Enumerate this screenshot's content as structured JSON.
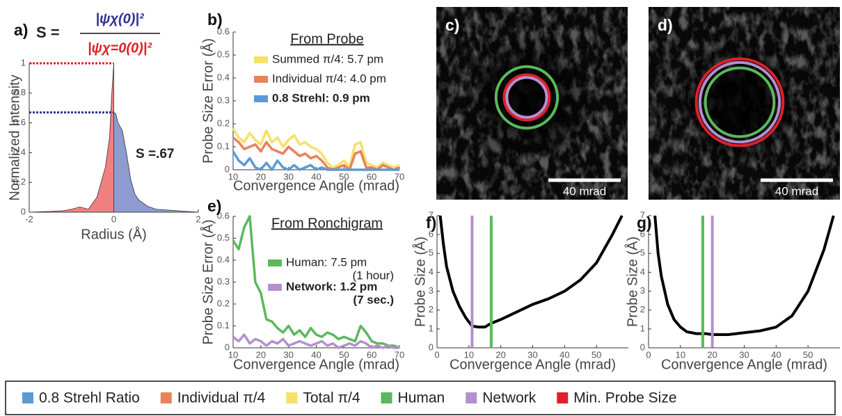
{
  "chart_data": [
    {
      "type": "area",
      "panel_label": "a)",
      "formula": {
        "lhs": "S =",
        "numerator": "|ψχ(0)|²",
        "denominator": "|ψχ=0(0)|²"
      },
      "annotation": "S =.67",
      "x_label": "Radius (Å)",
      "y_label": "Normalized Intensity",
      "xlim": [
        -2,
        2
      ],
      "xticks": [
        -2,
        0,
        2
      ],
      "ylim": [
        0,
        1
      ],
      "yticks": [
        0,
        0.2,
        0.4,
        0.6,
        0.8,
        1
      ],
      "hlines": [
        {
          "value": 1,
          "color": "#e0202a"
        },
        {
          "value": 0.67,
          "color": "#2e3192"
        }
      ],
      "series": [
        {
          "color": "#f08080",
          "x": [
            -2,
            -1.5,
            -1.2,
            -1,
            -0.8,
            -0.6,
            -0.4,
            -0.3,
            -0.2,
            -0.1,
            -0.05,
            0
          ],
          "values": [
            0,
            0.005,
            0.01,
            0.02,
            0.035,
            0.02,
            0.1,
            0.2,
            0.3,
            0.5,
            0.78,
            1
          ]
        },
        {
          "color": "#8d9bd0",
          "x": [
            0,
            0.05,
            0.1,
            0.2,
            0.3,
            0.4,
            0.5,
            0.6,
            0.8,
            1,
            1.5,
            2
          ],
          "values": [
            0.67,
            0.66,
            0.6,
            0.55,
            0.4,
            0.22,
            0.12,
            0.08,
            0.04,
            0.02,
            0.01,
            0
          ]
        }
      ]
    },
    {
      "type": "line",
      "panel_label": "b)",
      "title": "From Probe",
      "x_label": "Convergence Angle (mrad)",
      "y_label": "Probe Size Error (Å)",
      "xlim": [
        10,
        70
      ],
      "xticks": [
        10,
        20,
        30,
        40,
        50,
        60,
        70
      ],
      "ylim": [
        0,
        0.6
      ],
      "yticks": [
        0,
        0.1,
        0.2,
        0.3,
        0.4,
        0.5,
        0.6
      ],
      "x": [
        10,
        12,
        14,
        16,
        18,
        20,
        22,
        24,
        26,
        28,
        30,
        32,
        34,
        36,
        38,
        40,
        42,
        44,
        46,
        48,
        50,
        52,
        54,
        56,
        58,
        60,
        62,
        64,
        66,
        68,
        70
      ],
      "series": [
        {
          "name": "Summed π/4: 5.7 pm",
          "color": "#f7e06a",
          "bold": false,
          "values": [
            0.18,
            0.14,
            0.12,
            0.16,
            0.13,
            0.11,
            0.17,
            0.12,
            0.14,
            0.1,
            0.13,
            0.15,
            0.11,
            0.12,
            0.1,
            0.09,
            0.07,
            0.03,
            0.01,
            0.02,
            0.04,
            0.01,
            0.11,
            0.12,
            0.03,
            0.02,
            0.01,
            0.03,
            0.02,
            0.01,
            0.02
          ]
        },
        {
          "name": "Individual π/4: 4.0 pm",
          "color": "#e8825a",
          "bold": false,
          "values": [
            0.14,
            0.12,
            0.09,
            0.1,
            0.11,
            0.08,
            0.12,
            0.09,
            0.08,
            0.07,
            0.1,
            0.08,
            0.06,
            0.07,
            0.05,
            0.06,
            0.04,
            0.01,
            0,
            0.01,
            0.02,
            0,
            0.07,
            0.08,
            0.01,
            0.01,
            0,
            0.02,
            0.01,
            0,
            0.01
          ]
        },
        {
          "name": "0.8 Strehl: 0.9 pm",
          "color": "#5b9bd5",
          "bold": true,
          "values": [
            0.08,
            0.04,
            0.02,
            0.05,
            0.01,
            0,
            0.03,
            0,
            0.04,
            0.01,
            0,
            0.02,
            0,
            0.01,
            0.02,
            0,
            0.01,
            0,
            0,
            0,
            0,
            0,
            0,
            0,
            0,
            0,
            0,
            0,
            0,
            0,
            0
          ]
        }
      ]
    },
    {
      "type": "image",
      "panel_label": "c)",
      "scale_bar": {
        "value": 40,
        "label": "40 mrad"
      },
      "circles": [
        {
          "color": "#5cb85c",
          "r": 17
        },
        {
          "color": "#e0202a",
          "r": 12.5
        },
        {
          "color": "#b48fd0",
          "r": 11
        }
      ]
    },
    {
      "type": "image",
      "panel_label": "d)",
      "scale_bar": {
        "value": 40,
        "label": "40 mrad"
      },
      "circles": [
        {
          "color": "#e0202a",
          "r": 24
        },
        {
          "color": "#b48fd0",
          "r": 22
        },
        {
          "color": "#5cb85c",
          "r": 19
        }
      ]
    },
    {
      "type": "line",
      "panel_label": "e)",
      "title": "From Ronchigram",
      "x_label": "Convergence Angle (mrad)",
      "y_label": "Probe Size Error (Å)",
      "xlim": [
        10,
        70
      ],
      "xticks": [
        10,
        20,
        30,
        40,
        50,
        60,
        70
      ],
      "ylim": [
        0,
        0.6
      ],
      "yticks": [
        0,
        0.1,
        0.2,
        0.3,
        0.4,
        0.5,
        0.6
      ],
      "x": [
        10,
        12,
        14,
        16,
        18,
        20,
        22,
        24,
        26,
        28,
        30,
        32,
        34,
        36,
        38,
        40,
        42,
        44,
        46,
        48,
        50,
        52,
        54,
        56,
        58,
        60,
        62,
        64,
        66,
        68,
        70
      ],
      "series": [
        {
          "name": "Human: 7.5 pm",
          "note": "(1 hour)",
          "color": "#5cb85c",
          "bold": false,
          "values": [
            0.49,
            0.45,
            0.55,
            0.6,
            0.3,
            0.25,
            0.13,
            0.12,
            0.09,
            0.07,
            0.1,
            0.06,
            0.08,
            0.05,
            0.09,
            0.06,
            0.05,
            0.07,
            0.06,
            0.04,
            0.05,
            0.04,
            0.03,
            0.1,
            0.07,
            0.03,
            0.02,
            0.02,
            0.01,
            0.01,
            0
          ]
        },
        {
          "name": "Network: 1.2 pm",
          "note": "(7 sec.)",
          "color": "#b48fd0",
          "bold": true,
          "values": [
            0.05,
            0.03,
            0.06,
            0.02,
            0.04,
            0.03,
            0.01,
            0.03,
            0.02,
            0.04,
            0.01,
            0.02,
            0.03,
            0.02,
            0.01,
            0.02,
            0.03,
            0.01,
            0.02,
            0,
            0.01,
            0.02,
            0.01,
            0.03,
            0.02,
            0,
            0.01,
            0,
            0.01,
            0,
            0
          ]
        }
      ]
    },
    {
      "type": "line",
      "panel_label": "f)",
      "x_label": "Convergence Angle (mrad)",
      "y_label": "Probe Size (Å)",
      "xlim": [
        0,
        60
      ],
      "xticks": [
        0,
        10,
        20,
        30,
        40,
        50
      ],
      "ylim": [
        0,
        7
      ],
      "yticks": [
        0,
        1,
        2,
        3,
        4,
        5,
        6,
        7
      ],
      "vlines": [
        {
          "x": 11,
          "color": "#b48fd0"
        },
        {
          "x": 17,
          "color": "#5cb85c"
        }
      ],
      "series": [
        {
          "color": "#000000",
          "x": [
            1,
            2,
            3,
            5,
            7,
            9,
            11,
            13,
            15,
            17,
            20,
            25,
            30,
            35,
            40,
            45,
            50,
            55,
            58
          ],
          "values": [
            7,
            5.5,
            4.3,
            3,
            2.2,
            1.6,
            1.15,
            1.1,
            1.1,
            1.3,
            1.5,
            1.9,
            2.3,
            2.6,
            3,
            3.6,
            4.5,
            6,
            7
          ]
        }
      ]
    },
    {
      "type": "line",
      "panel_label": "g)",
      "x_label": "Convergence Angle (mrad)",
      "y_label": "Probe Size (Å)",
      "xlim": [
        0,
        60
      ],
      "xticks": [
        0,
        10,
        20,
        30,
        40,
        50
      ],
      "ylim": [
        0,
        7
      ],
      "yticks": [
        0,
        1,
        2,
        3,
        4,
        5,
        6,
        7
      ],
      "vlines": [
        {
          "x": 17,
          "color": "#5cb85c"
        },
        {
          "x": 20,
          "color": "#b48fd0"
        }
      ],
      "series": [
        {
          "color": "#000000",
          "x": [
            2,
            3,
            4,
            6,
            8,
            10,
            12,
            15,
            18,
            20,
            25,
            30,
            35,
            40,
            45,
            50,
            55,
            58
          ],
          "values": [
            7,
            5,
            3.8,
            2.3,
            1.5,
            1.1,
            0.85,
            0.75,
            0.75,
            0.7,
            0.7,
            0.8,
            0.9,
            1.1,
            1.7,
            3,
            5.2,
            7
          ]
        }
      ]
    }
  ],
  "legend": {
    "items": [
      {
        "label": "0.8 Strehl Ratio",
        "color": "#5b9bd5"
      },
      {
        "label": "Individual π/4",
        "color": "#e8825a"
      },
      {
        "label": "Total π/4",
        "color": "#f7e06a"
      },
      {
        "label": "Human",
        "color": "#5cb85c"
      },
      {
        "label": "Network",
        "color": "#b48fd0"
      },
      {
        "label": "Min. Probe Size",
        "color": "#e0202a"
      }
    ]
  }
}
